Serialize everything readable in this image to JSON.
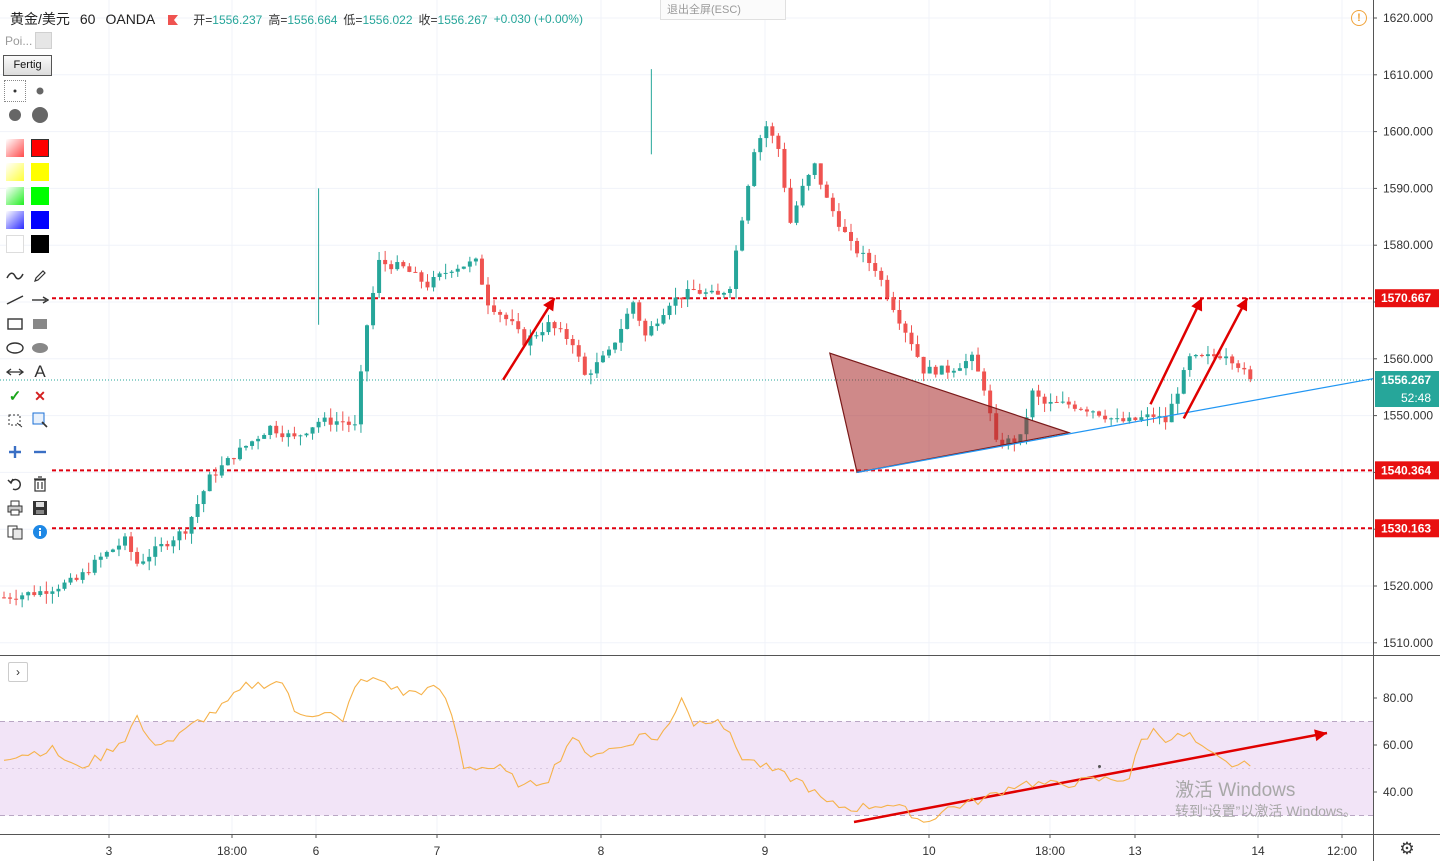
{
  "header": {
    "symbol": "黄金/美元",
    "interval": "60",
    "broker": "OANDA",
    "open_label": "开=",
    "open": "1556.237",
    "high_label": "高=",
    "high": "1556.664",
    "low_label": "低=",
    "low": "1556.022",
    "close_label": "收=",
    "close": "1556.267",
    "change": "+0.030 (+0.00%)"
  },
  "exit_fullscreen": "退出全屏(ESC)",
  "toolbar": {
    "poi_label": "Poi...",
    "done_label": "Fertig",
    "text_tool": "A",
    "colors": [
      "#ff0000",
      "#ffff00",
      "#00ff00",
      "#0000ff",
      "#ffffff",
      "#000000"
    ]
  },
  "price_axis": {
    "ticks": [
      "1620.000",
      "1610.000",
      "1600.000",
      "1590.000",
      "1580.000",
      "1570.000",
      "1560.000",
      "1550.000",
      "1540.000",
      "1530.000",
      "1520.000",
      "1510.000"
    ],
    "levels": [
      "1570.667",
      "1540.364",
      "1530.163"
    ],
    "last_price": "1556.267",
    "countdown": "52:48"
  },
  "time_axis": [
    "3",
    "18:00",
    "6",
    "7",
    "8",
    "9",
    "10",
    "18:00",
    "13",
    "14",
    "12:00"
  ],
  "rsi_axis": [
    "80.00",
    "60.00",
    "40.00"
  ],
  "watermark": {
    "line1": "激活 Windows",
    "line2": "转到“设置”以激活 Windows。"
  },
  "colors": {
    "up": "#26a69a",
    "down": "#ef5350",
    "level_line": "#e0000f",
    "rsi_line": "#f6b24a",
    "rsi_band": "#f2e4f7",
    "trend_line": "#2196f3",
    "triangle_fill": "#a82828"
  },
  "chart_data": {
    "type": "candlestick",
    "title": "黄金/美元 · 60 · OANDA",
    "x_ticks": [
      "3",
      "18:00",
      "6",
      "7",
      "8",
      "9",
      "10",
      "18:00",
      "13",
      "14",
      "12:00"
    ],
    "ylim": [
      1506,
      1622
    ],
    "y_ticks": [
      1620,
      1610,
      1600,
      1590,
      1580,
      1570,
      1560,
      1550,
      1540,
      1530,
      1520,
      1510
    ],
    "horizontal_levels": [
      1570.667,
      1540.364,
      1530.163
    ],
    "last_price": 1556.267,
    "anchors": [
      [
        0,
        1518
      ],
      [
        6,
        1519
      ],
      [
        12,
        1521
      ],
      [
        16,
        1525
      ],
      [
        20,
        1528
      ],
      [
        22,
        1524
      ],
      [
        26,
        1527
      ],
      [
        30,
        1530
      ],
      [
        34,
        1539
      ],
      [
        38,
        1543
      ],
      [
        44,
        1548
      ],
      [
        48,
        1546
      ],
      [
        52,
        1549
      ],
      [
        56,
        1549
      ],
      [
        58,
        1548
      ],
      [
        60,
        1566
      ],
      [
        62,
        1577
      ],
      [
        66,
        1576
      ],
      [
        70,
        1573
      ],
      [
        74,
        1576
      ],
      [
        78,
        1577
      ],
      [
        80,
        1570
      ],
      [
        84,
        1566
      ],
      [
        86,
        1563
      ],
      [
        90,
        1566
      ],
      [
        94,
        1563
      ],
      [
        96,
        1557
      ],
      [
        100,
        1561
      ],
      [
        104,
        1570
      ],
      [
        106,
        1564
      ],
      [
        110,
        1570
      ],
      [
        114,
        1572
      ],
      [
        118,
        1571
      ],
      [
        120,
        1573
      ],
      [
        124,
        1597
      ],
      [
        126,
        1601
      ],
      [
        128,
        1597
      ],
      [
        130,
        1584
      ],
      [
        132,
        1590
      ],
      [
        134,
        1594
      ],
      [
        136,
        1588
      ],
      [
        140,
        1580
      ],
      [
        144,
        1576
      ],
      [
        148,
        1567
      ],
      [
        150,
        1563
      ],
      [
        152,
        1558
      ],
      [
        156,
        1558
      ],
      [
        160,
        1560
      ],
      [
        162,
        1555
      ],
      [
        164,
        1545
      ],
      [
        168,
        1546
      ],
      [
        170,
        1554
      ],
      [
        172,
        1552
      ],
      [
        176,
        1552
      ],
      [
        180,
        1551
      ],
      [
        184,
        1549
      ],
      [
        186,
        1549
      ],
      [
        190,
        1550
      ],
      [
        192,
        1549
      ],
      [
        196,
        1560
      ],
      [
        198,
        1560
      ],
      [
        202,
        1561
      ],
      [
        204,
        1559
      ],
      [
        206,
        1556
      ]
    ],
    "rsi": {
      "ylim": [
        22,
        92
      ],
      "band": [
        30,
        70
      ],
      "ticks": [
        80,
        60,
        40
      ],
      "anchors": [
        [
          0,
          55
        ],
        [
          8,
          58
        ],
        [
          12,
          50
        ],
        [
          16,
          55
        ],
        [
          20,
          63
        ],
        [
          22,
          72
        ],
        [
          24,
          61
        ],
        [
          28,
          62
        ],
        [
          32,
          70
        ],
        [
          36,
          76
        ],
        [
          40,
          85
        ],
        [
          46,
          87
        ],
        [
          48,
          74
        ],
        [
          54,
          73
        ],
        [
          56,
          69
        ],
        [
          58,
          86
        ],
        [
          62,
          88
        ],
        [
          66,
          82
        ],
        [
          72,
          84
        ],
        [
          74,
          73
        ],
        [
          76,
          51
        ],
        [
          82,
          50
        ],
        [
          86,
          42
        ],
        [
          90,
          46
        ],
        [
          94,
          64
        ],
        [
          96,
          56
        ],
        [
          102,
          59
        ],
        [
          106,
          65
        ],
        [
          108,
          62
        ],
        [
          110,
          69
        ],
        [
          112,
          81
        ],
        [
          114,
          69
        ],
        [
          118,
          72
        ],
        [
          122,
          55
        ],
        [
          128,
          48
        ],
        [
          132,
          44
        ],
        [
          136,
          35
        ],
        [
          140,
          33
        ],
        [
          146,
          35
        ],
        [
          150,
          31
        ],
        [
          152,
          27
        ],
        [
          156,
          33
        ],
        [
          162,
          37
        ],
        [
          168,
          44
        ],
        [
          174,
          43
        ],
        [
          180,
          45
        ],
        [
          186,
          46
        ],
        [
          188,
          62
        ],
        [
          190,
          66
        ],
        [
          192,
          63
        ],
        [
          196,
          64
        ],
        [
          198,
          58
        ],
        [
          202,
          52
        ],
        [
          206,
          51
        ]
      ]
    }
  }
}
